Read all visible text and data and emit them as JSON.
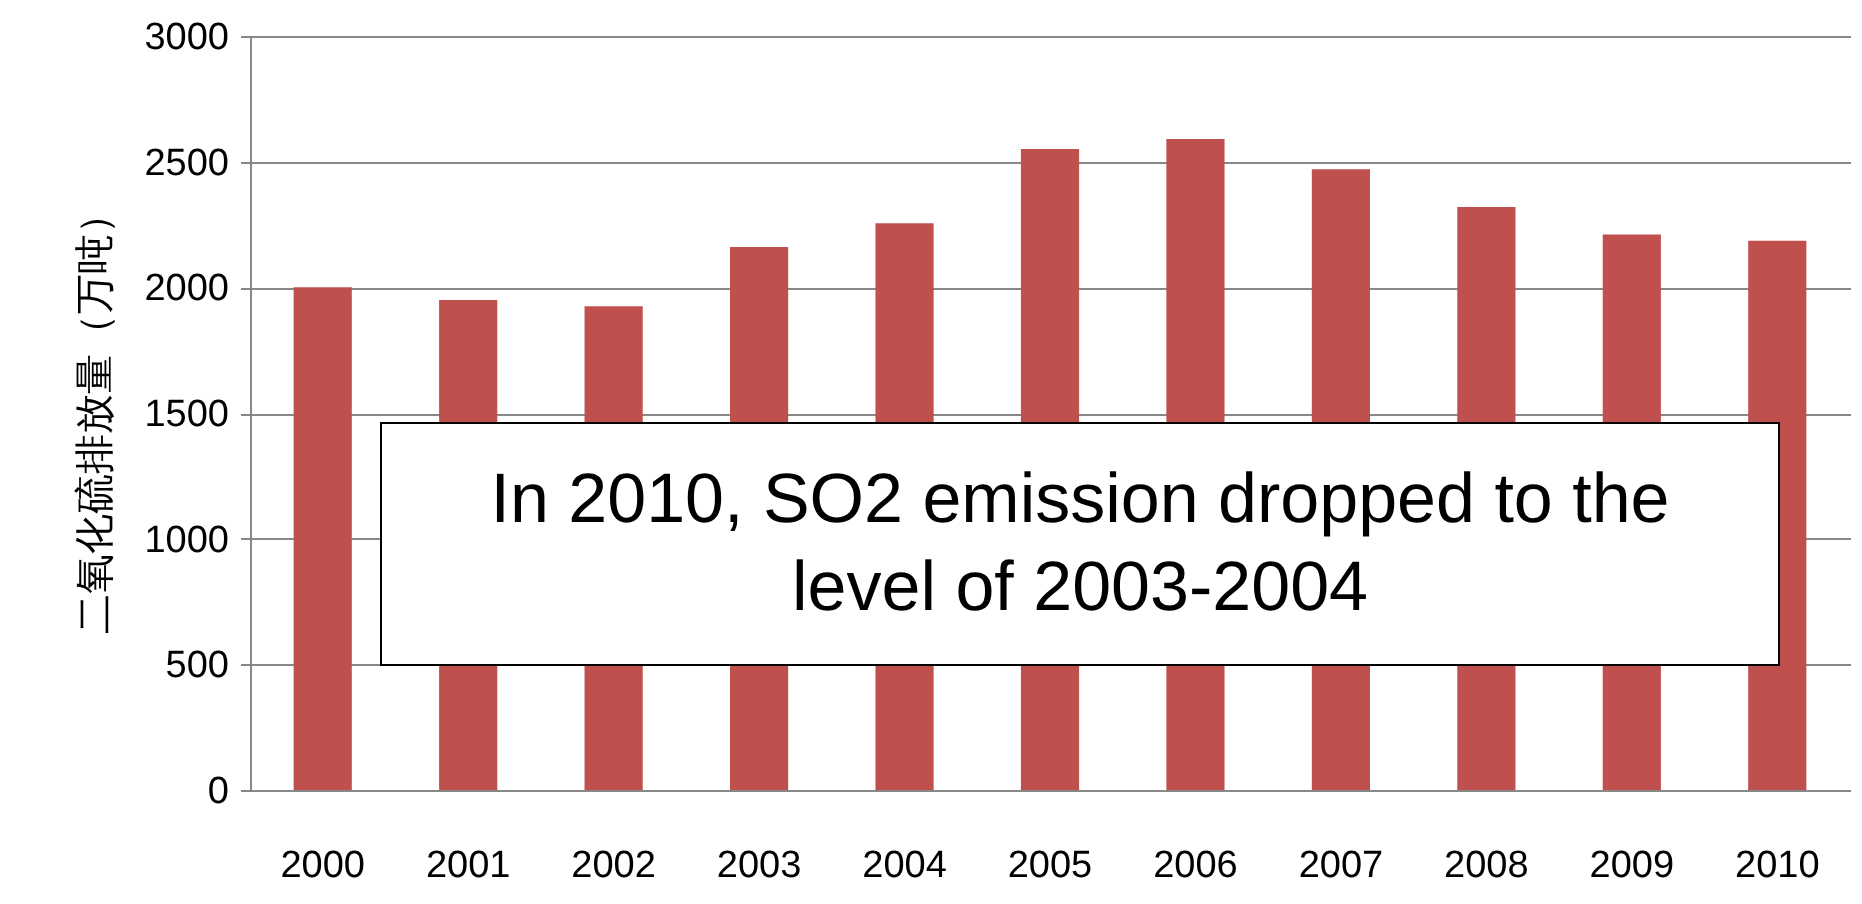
{
  "chart_data": {
    "type": "bar",
    "ylabel": "二氧化硫排放量（万吨）",
    "categories": [
      "2000",
      "2001",
      "2002",
      "2003",
      "2004",
      "2005",
      "2006",
      "2007",
      "2008",
      "2009",
      "2010"
    ],
    "values": [
      2000,
      1950,
      1925,
      2160,
      2255,
      2550,
      2590,
      2470,
      2320,
      2210,
      2185
    ],
    "color": "#c0504d",
    "ylim": [
      0,
      3000
    ],
    "yticks": [
      0,
      500,
      1000,
      1500,
      2000,
      2500,
      3000
    ],
    "grid": "y",
    "annotations": [
      "In 2010, SO2 emission dropped to the level of 2003-2004"
    ]
  }
}
